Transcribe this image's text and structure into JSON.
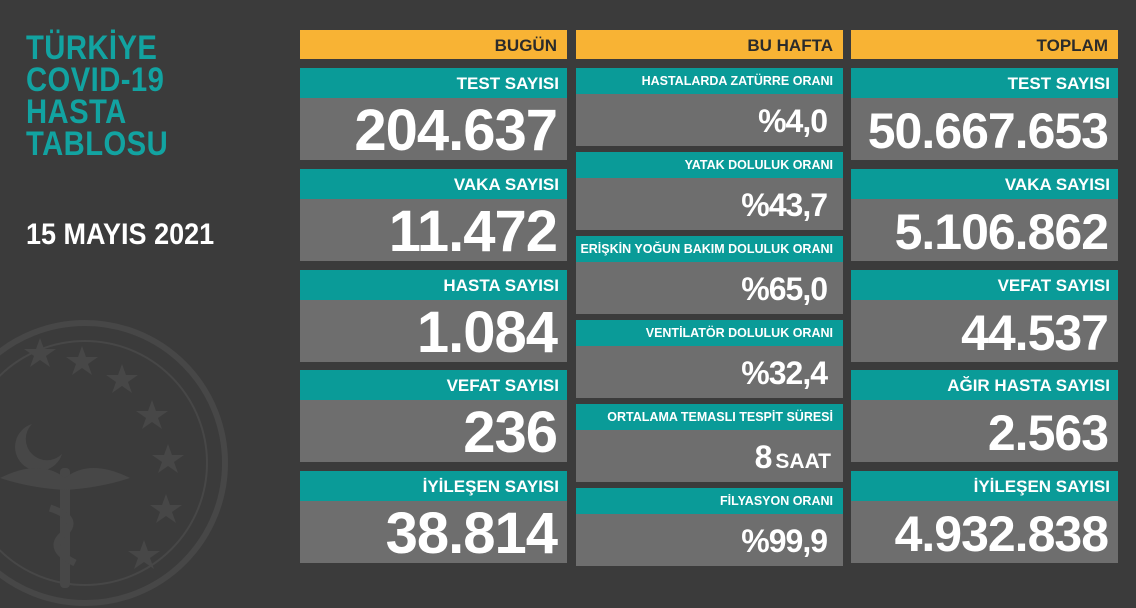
{
  "title_lines": [
    "TÜRKİYE",
    "COVID-19",
    "HASTA",
    "TABLOSU"
  ],
  "date": "15 MAYIS 2021",
  "colors": {
    "background": "#3b3b3b",
    "header": "#f8b334",
    "label": "#0a9b98",
    "value_box": "#6e6e6e",
    "title": "#12a3a1"
  },
  "today": {
    "header": "BUGÜN",
    "items": [
      {
        "label": "TEST SAYISI",
        "value": "204.637"
      },
      {
        "label": "VAKA SAYISI",
        "value": "11.472"
      },
      {
        "label": "HASTA SAYISI",
        "value": "1.084"
      },
      {
        "label": "VEFAT SAYISI",
        "value": "236"
      },
      {
        "label": "İYİLEŞEN SAYISI",
        "value": "38.814"
      }
    ]
  },
  "week": {
    "header": "BU HAFTA",
    "items": [
      {
        "label": "HASTALARDA ZATÜRRE ORANI",
        "value": "%4,0",
        "unit": ""
      },
      {
        "label": "YATAK DOLULUK ORANI",
        "value": "%43,7",
        "unit": ""
      },
      {
        "label": "ERİŞKİN YOĞUN BAKIM DOLULUK ORANI",
        "value": "%65,0",
        "unit": ""
      },
      {
        "label": "VENTİLATÖR DOLULUK ORANI",
        "value": "%32,4",
        "unit": ""
      },
      {
        "label": "ORTALAMA TEMASLI TESPİT SÜRESİ",
        "value": "8",
        "unit": "SAAT"
      },
      {
        "label": "FİLYASYON ORANI",
        "value": "%99,9",
        "unit": ""
      }
    ]
  },
  "total": {
    "header": "TOPLAM",
    "items": [
      {
        "label": "TEST SAYISI",
        "value": "50.667.653"
      },
      {
        "label": "VAKA SAYISI",
        "value": "5.106.862"
      },
      {
        "label": "VEFAT SAYISI",
        "value": "44.537"
      },
      {
        "label": "AĞIR HASTA SAYISI",
        "value": "2.563"
      },
      {
        "label": "İYİLEŞEN SAYISI",
        "value": "4.932.838"
      }
    ]
  }
}
